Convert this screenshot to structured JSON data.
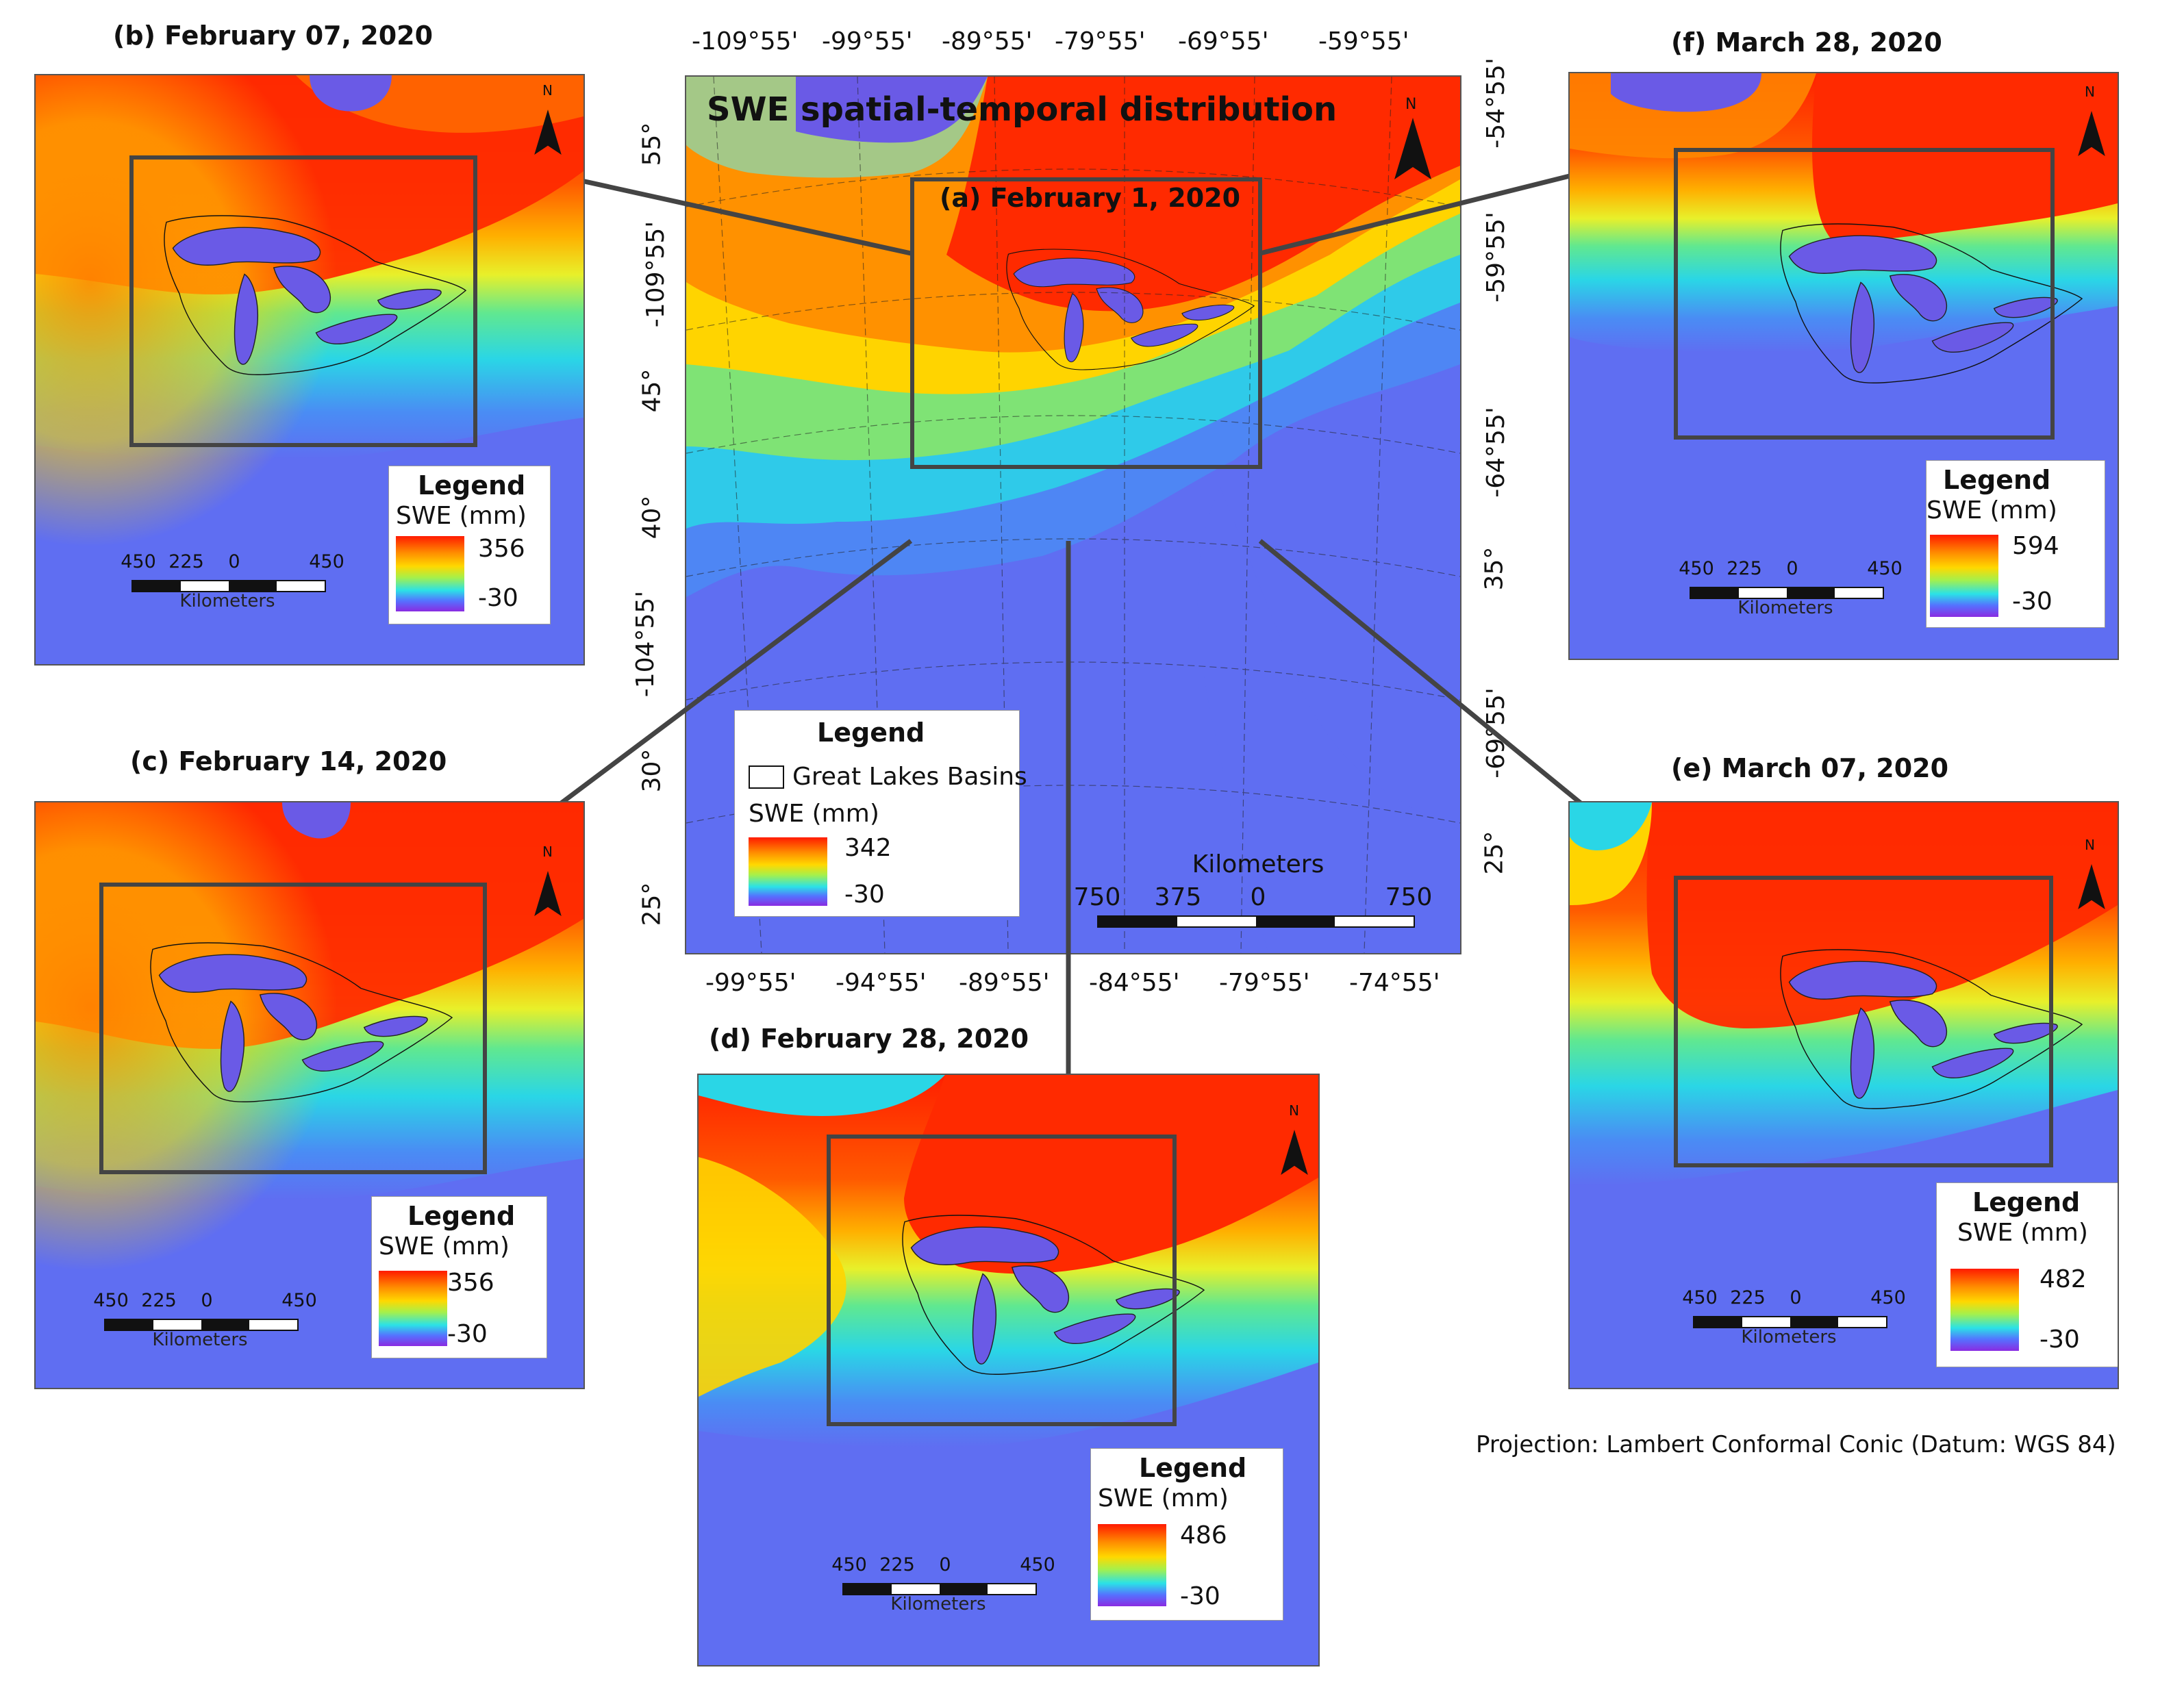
{
  "main": {
    "title": "SWE spatial-temporal distribution",
    "subtitle": "(a) February 1, 2020",
    "top_labels": [
      "-109°55'",
      "-99°55'",
      "-89°55'",
      "-79°55'",
      "-69°55'",
      "-59°55'"
    ],
    "bottom_labels": [
      "-99°55'",
      "-94°55'",
      "-89°55'",
      "-84°55'",
      "-79°55'",
      "-74°55'"
    ],
    "left_labels": [
      "55°",
      "-109°55'",
      "45°",
      "40°",
      "-104°55'",
      "30°",
      "25°"
    ],
    "right_labels": [
      "-54°55'",
      "-59°55'",
      "-64°55'",
      "35°",
      "-69°55'",
      "25°"
    ],
    "legend": {
      "title": "Legend",
      "basin": "Great Lakes Basins",
      "unit": "SWE (mm)",
      "max": "342",
      "min": "-30"
    },
    "scale": {
      "unit": "Kilometers",
      "ticks": [
        "750",
        "375",
        "0",
        "750"
      ]
    }
  },
  "panels": [
    {
      "id": "b",
      "title": "(b) February 07, 2020",
      "legend_title": "Legend",
      "unit": "SWE (mm)",
      "max": "356",
      "min": "-30",
      "scale_ticks": [
        "450",
        "225",
        "0",
        "450"
      ],
      "scale_unit": "Kilometers"
    },
    {
      "id": "c",
      "title": "(c) February 14, 2020",
      "legend_title": "Legend",
      "unit": "SWE (mm)",
      "max": "356",
      "min": "-30",
      "scale_ticks": [
        "450",
        "225",
        "0",
        "450"
      ],
      "scale_unit": "Kilometers"
    },
    {
      "id": "d",
      "title": "(d) February 28, 2020",
      "legend_title": "Legend",
      "unit": "SWE (mm)",
      "max": "486",
      "min": "-30",
      "scale_ticks": [
        "450",
        "225",
        "0",
        "450"
      ],
      "scale_unit": "Kilometers"
    },
    {
      "id": "e",
      "title": "(e) March 07, 2020",
      "legend_title": "Legend",
      "unit": "SWE (mm)",
      "max": "482",
      "min": "-30",
      "scale_ticks": [
        "450",
        "225",
        "0",
        "450"
      ],
      "scale_unit": "Kilometers"
    },
    {
      "id": "f",
      "title": "(f) March 28, 2020",
      "legend_title": "Legend",
      "unit": "SWE (mm)",
      "max": "594",
      "min": "-30",
      "scale_ticks": [
        "450",
        "225",
        "0",
        "450"
      ],
      "scale_unit": "Kilometers"
    }
  ],
  "projection": "Projection: Lambert Conformal Conic (Datum: WGS 84)",
  "north": "N",
  "colors": {
    "ocean": "#5f6ef2",
    "snow_high": "#ff2a00",
    "snow_mid": "#ffd400",
    "snow_low": "#2ee0d8",
    "lake": "#6a5ae6"
  }
}
